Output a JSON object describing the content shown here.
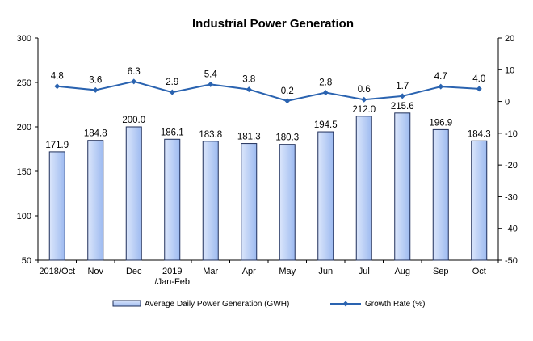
{
  "chart_data": {
    "type": "bar+line",
    "title": "Industrial Power Generation",
    "categories": [
      [
        "2018/Oct"
      ],
      [
        "Nov"
      ],
      [
        "Dec"
      ],
      [
        "2019",
        "/Jan-Feb"
      ],
      [
        "Mar"
      ],
      [
        "Apr"
      ],
      [
        "May"
      ],
      [
        "Jun"
      ],
      [
        "Jul"
      ],
      [
        "Aug"
      ],
      [
        "Sep"
      ],
      [
        "Oct"
      ]
    ],
    "series": [
      {
        "name": "Average Daily Power Generation (GWH)",
        "type": "bar",
        "axis": "left",
        "values": [
          171.9,
          184.8,
          200.0,
          186.1,
          183.8,
          181.3,
          180.3,
          194.5,
          212.0,
          215.6,
          196.9,
          184.3
        ],
        "labels": [
          "171.9",
          "184.8",
          "200.0",
          "186.1",
          "183.8",
          "181.3",
          "180.3",
          "194.5",
          "212.0",
          "215.6",
          "196.9",
          "184.3"
        ]
      },
      {
        "name": "Growth Rate (%)",
        "type": "line",
        "axis": "right",
        "values": [
          4.8,
          3.6,
          6.3,
          2.9,
          5.4,
          3.8,
          0.2,
          2.8,
          0.6,
          1.7,
          4.7,
          4.0
        ],
        "labels": [
          "4.8",
          "3.6",
          "6.3",
          "2.9",
          "5.4",
          "3.8",
          "0.2",
          "2.8",
          "0.6",
          "1.7",
          "4.7",
          "4.0"
        ]
      }
    ],
    "y_left": {
      "min": 50,
      "max": 300,
      "ticks": [
        "300",
        "250",
        "200",
        "150",
        "100",
        "50"
      ]
    },
    "y_right": {
      "min": -50,
      "max": 20,
      "ticks": [
        "20",
        "10",
        "0",
        "-10",
        "-20",
        "-30",
        "-40",
        "-50"
      ]
    },
    "grid": false,
    "legend": "bottom",
    "colors": {
      "bar_fill_top": "#dbe6fb",
      "bar_fill_bottom": "#9dbaf0",
      "bar_stroke": "#1f2f5a",
      "line": "#2a63b0"
    }
  }
}
